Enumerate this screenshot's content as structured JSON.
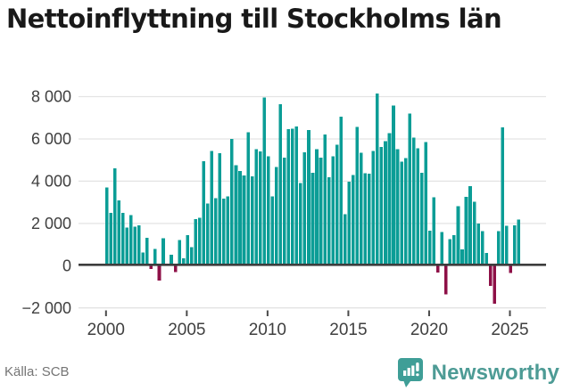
{
  "title": "Nettoinflyttning till Stockholms län",
  "source": "Källa: SCB",
  "brand": {
    "name": "Newsworthy",
    "logo_icon": "bar-chart-speech-bubble"
  },
  "colors": {
    "bar_positive": "#0b9d96",
    "bar_negative": "#8e1047",
    "grid": "#e3e3e3",
    "zero_line": "#3d3d3d",
    "axis_label": "#3f3f3f",
    "tick_mark": "#4a4a4a",
    "title_text": "#191919",
    "source_text": "#757575",
    "brand_teal": "#4d9b95",
    "brand_badge": "#3f9e97"
  },
  "chart_data": {
    "type": "bar",
    "title": "Nettoinflyttning till Stockholms län",
    "xlabel": "",
    "ylabel": "",
    "unit": "personer per kvartal",
    "frequency": "quarterly",
    "start_period": "2000Q1",
    "end_period": "2025Q3",
    "grid": true,
    "legend": false,
    "ylim": [
      -2000,
      8400
    ],
    "xlim_years": [
      2000,
      2025.75
    ],
    "y_ticks": [
      {
        "value": 8000,
        "label": "8 000"
      },
      {
        "value": 6000,
        "label": "6 000"
      },
      {
        "value": 4000,
        "label": "4 000"
      },
      {
        "value": 2000,
        "label": "2 000"
      },
      {
        "value": 0,
        "label": "0"
      },
      {
        "value": -2000,
        "label": "−2 000"
      }
    ],
    "x_ticks": [
      {
        "year": 2000,
        "label": "2000"
      },
      {
        "year": 2005,
        "label": "2005"
      },
      {
        "year": 2010,
        "label": "2010"
      },
      {
        "year": 2015,
        "label": "2015"
      },
      {
        "year": 2020,
        "label": "2020"
      },
      {
        "year": 2025,
        "label": "2025"
      }
    ],
    "periods": [
      "2000Q1",
      "2000Q2",
      "2000Q3",
      "2000Q4",
      "2001Q1",
      "2001Q2",
      "2001Q3",
      "2001Q4",
      "2002Q1",
      "2002Q2",
      "2002Q3",
      "2002Q4",
      "2003Q1",
      "2003Q2",
      "2003Q3",
      "2003Q4",
      "2004Q1",
      "2004Q2",
      "2004Q3",
      "2004Q4",
      "2005Q1",
      "2005Q2",
      "2005Q3",
      "2005Q4",
      "2006Q1",
      "2006Q2",
      "2006Q3",
      "2006Q4",
      "2007Q1",
      "2007Q2",
      "2007Q3",
      "2007Q4",
      "2008Q1",
      "2008Q2",
      "2008Q3",
      "2008Q4",
      "2009Q1",
      "2009Q2",
      "2009Q3",
      "2009Q4",
      "2010Q1",
      "2010Q2",
      "2010Q3",
      "2010Q4",
      "2011Q1",
      "2011Q2",
      "2011Q3",
      "2011Q4",
      "2012Q1",
      "2012Q2",
      "2012Q3",
      "2012Q4",
      "2013Q1",
      "2013Q2",
      "2013Q3",
      "2013Q4",
      "2014Q1",
      "2014Q2",
      "2014Q3",
      "2014Q4",
      "2015Q1",
      "2015Q2",
      "2015Q3",
      "2015Q4",
      "2016Q1",
      "2016Q2",
      "2016Q3",
      "2016Q4",
      "2017Q1",
      "2017Q2",
      "2017Q3",
      "2017Q4",
      "2018Q1",
      "2018Q2",
      "2018Q3",
      "2018Q4",
      "2019Q1",
      "2019Q2",
      "2019Q3",
      "2019Q4",
      "2020Q1",
      "2020Q2",
      "2020Q3",
      "2020Q4",
      "2021Q1",
      "2021Q2",
      "2021Q3",
      "2021Q4",
      "2022Q1",
      "2022Q2",
      "2022Q3",
      "2022Q4",
      "2023Q1",
      "2023Q2",
      "2023Q3",
      "2023Q4",
      "2024Q1",
      "2024Q2",
      "2024Q3",
      "2024Q4",
      "2025Q1",
      "2025Q2",
      "2025Q3"
    ],
    "values": [
      3700,
      2500,
      4600,
      3100,
      2500,
      1800,
      2400,
      1850,
      1900,
      620,
      1330,
      -150,
      800,
      -700,
      1300,
      50,
      520,
      -300,
      1220,
      350,
      1450,
      870,
      2210,
      2260,
      4950,
      2950,
      5430,
      3200,
      5320,
      3180,
      3290,
      6000,
      4760,
      4480,
      4270,
      6320,
      4230,
      5520,
      5400,
      7950,
      5170,
      3280,
      4680,
      7640,
      5120,
      6460,
      6490,
      6590,
      3910,
      5370,
      6420,
      4400,
      5510,
      5120,
      6210,
      4190,
      5170,
      5720,
      7050,
      2440,
      3980,
      4300,
      6560,
      5350,
      4370,
      4360,
      5420,
      8150,
      5620,
      5890,
      6280,
      7570,
      5510,
      4930,
      5100,
      7200,
      6070,
      5550,
      4400,
      5860,
      1650,
      3240,
      -320,
      1590,
      -1350,
      1260,
      1450,
      2820,
      770,
      3250,
      3760,
      3030,
      2000,
      1630,
      600,
      -950,
      -1800,
      1630,
      6550,
      1880,
      -350,
      1900,
      2190
    ]
  }
}
